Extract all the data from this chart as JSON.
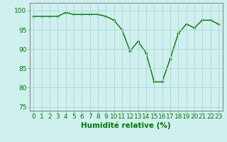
{
  "x": [
    0,
    1,
    2,
    3,
    4,
    5,
    6,
    7,
    8,
    9,
    10,
    11,
    12,
    13,
    14,
    15,
    16,
    17,
    18,
    19,
    20,
    21,
    22,
    23
  ],
  "y": [
    98.5,
    98.5,
    98.5,
    98.5,
    99.5,
    99.0,
    99.0,
    99.0,
    99.0,
    98.5,
    97.5,
    95.0,
    89.5,
    92.0,
    89.0,
    81.5,
    81.5,
    87.5,
    94.0,
    96.5,
    95.5,
    97.5,
    97.5,
    96.5
  ],
  "line_color": "#007700",
  "marker": "+",
  "marker_color": "#007700",
  "bg_color": "#d0f0f0",
  "grid_color": "#b0d8d8",
  "xlabel": "Humidité relative (%)",
  "xlabel_color": "#007700",
  "tick_color": "#007700",
  "ylim": [
    74,
    102
  ],
  "yticks": [
    75,
    80,
    85,
    90,
    95,
    100
  ],
  "xlim": [
    -0.5,
    23.5
  ],
  "xticks": [
    0,
    1,
    2,
    3,
    4,
    5,
    6,
    7,
    8,
    9,
    10,
    11,
    12,
    13,
    14,
    15,
    16,
    17,
    18,
    19,
    20,
    21,
    22,
    23
  ],
  "tick_label_fontsize": 6.5,
  "xlabel_fontsize": 7.5,
  "marker_size": 3.5,
  "line_width": 1.0
}
